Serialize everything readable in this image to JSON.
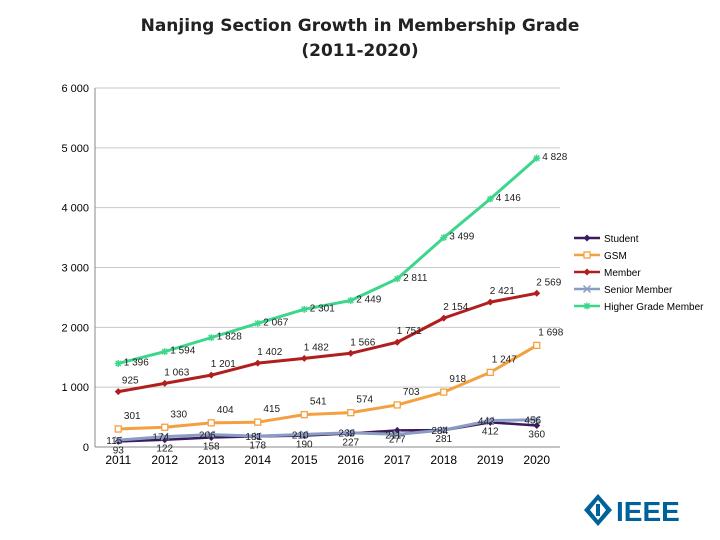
{
  "title_line1": "Nanjing Section Growth in Membership Grade",
  "title_line2": "(2011-2020)",
  "logo_text": "IEEE",
  "chart_data": {
    "type": "line",
    "categories": [
      "2011",
      "2012",
      "2013",
      "2014",
      "2015",
      "2016",
      "2017",
      "2018",
      "2019",
      "2020"
    ],
    "ylim": [
      0,
      6000
    ],
    "yticks": [
      0,
      1000,
      2000,
      3000,
      4000,
      5000,
      6000
    ],
    "ytick_labels": [
      "0",
      "1 000",
      "2 000",
      "3 000",
      "4 000",
      "5 000",
      "6 000"
    ],
    "grid": true,
    "legend": "right",
    "series": [
      {
        "name": "Student",
        "color": "#3b1b5e",
        "marker": "diamond",
        "values": [
          93,
          122,
          158,
          178,
          190,
          227,
          277,
          281,
          412,
          360
        ],
        "labels": [
          "93",
          "122",
          "158",
          "178",
          "190",
          "227",
          "277",
          "281",
          "412",
          "360"
        ]
      },
      {
        "name": "GSM",
        "color": "#f5a040",
        "marker": "square",
        "values": [
          301,
          330,
          404,
          415,
          541,
          574,
          703,
          918,
          1247,
          1698
        ],
        "labels": [
          "301",
          "330",
          "404",
          "415",
          "541",
          "574",
          "703",
          "918",
          "1 247",
          "1 698"
        ]
      },
      {
        "name": "Member",
        "color": "#b01e1e",
        "marker": "diamond",
        "values": [
          925,
          1063,
          1201,
          1402,
          1482,
          1566,
          1751,
          2154,
          2421,
          2569
        ],
        "labels": [
          "925",
          "1 063",
          "1 201",
          "1 402",
          "1 482",
          "1 566",
          "1 751",
          "2 154",
          "2 421",
          "2 569"
        ]
      },
      {
        "name": "Senior Member",
        "color": "#8a9bc4",
        "marker": "x",
        "values": [
          115,
          174,
          206,
          181,
          210,
          239,
          211,
          284,
          442,
          456
        ],
        "labels": [
          "115",
          "174",
          "206",
          "181",
          "210",
          "239",
          "211",
          "284",
          "442",
          "456"
        ]
      },
      {
        "name": "Higher Grade Member",
        "color": "#3dd68c",
        "marker": "star",
        "values": [
          1396,
          1594,
          1828,
          2067,
          2301,
          2449,
          2811,
          3499,
          4146,
          4828
        ],
        "labels": [
          "1 396",
          "1 594",
          "1 828",
          "2 067",
          "2 301",
          "2 449",
          "2 811",
          "3 499",
          "4 146",
          "4 828"
        ]
      }
    ]
  }
}
